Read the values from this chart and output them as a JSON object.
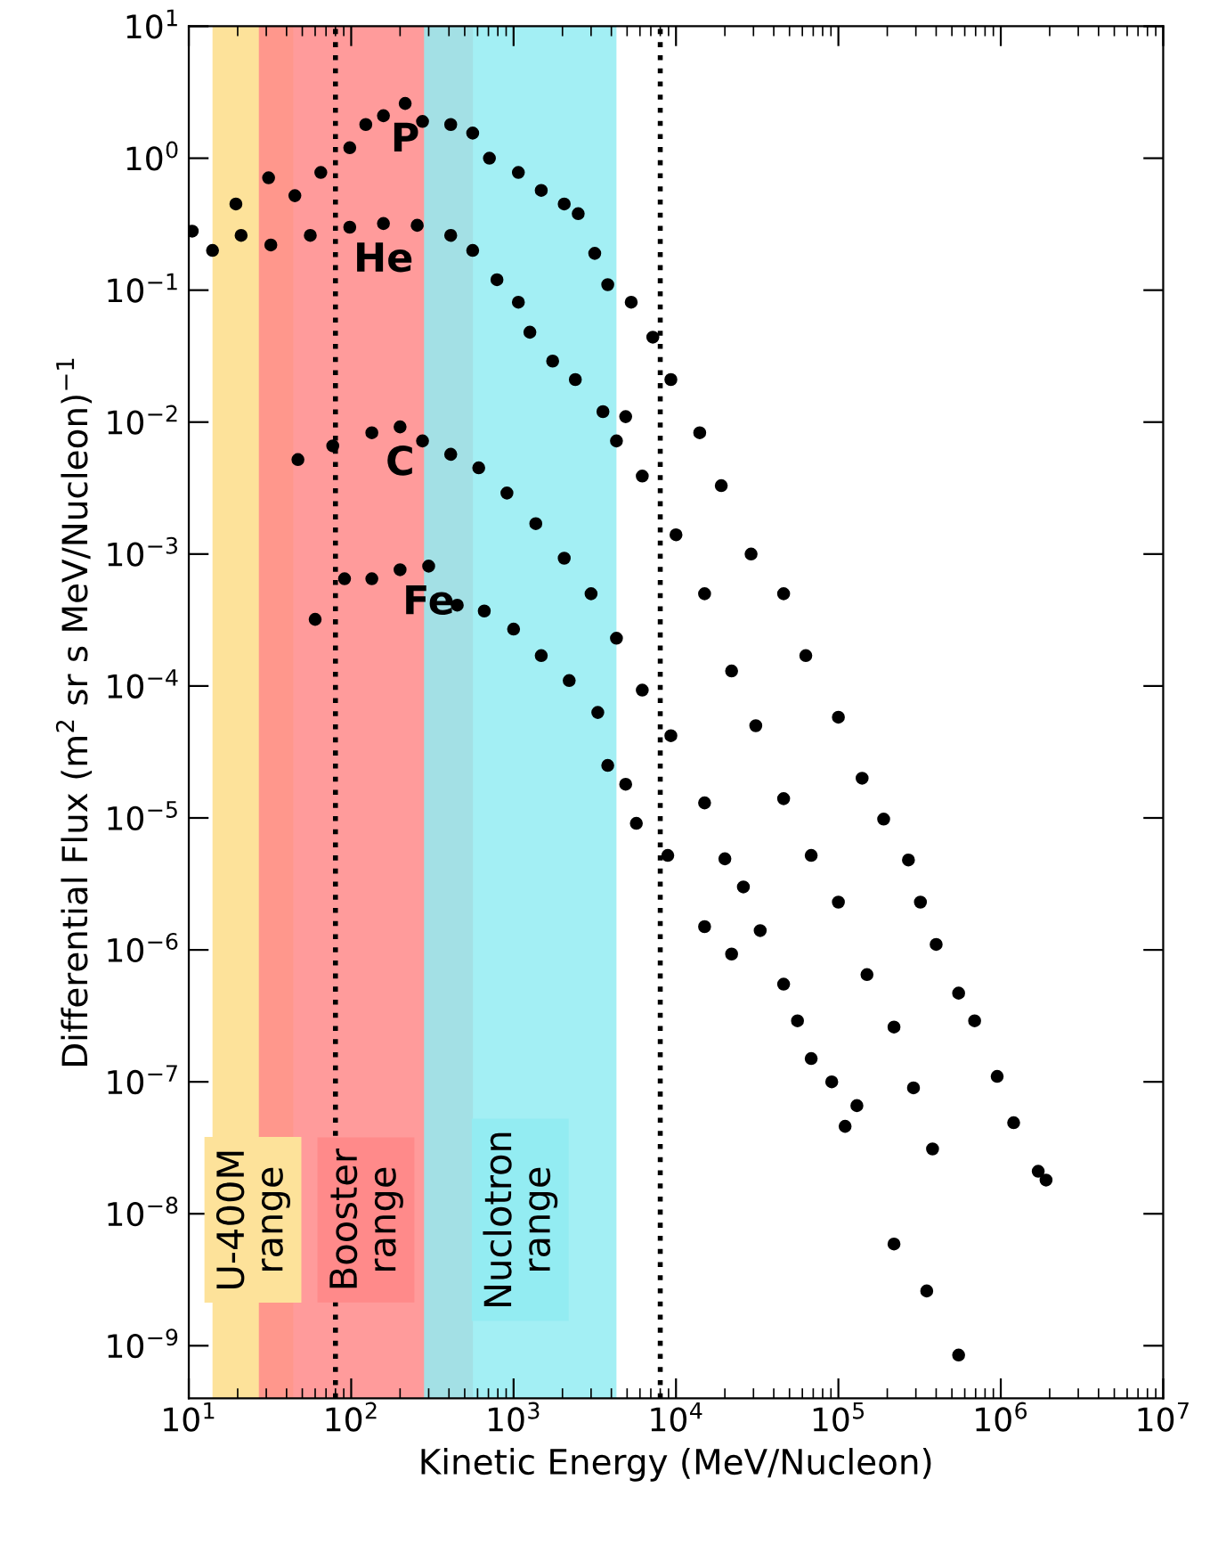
{
  "chart_data": {
    "type": "scatter",
    "xlabel": "Kinetic Energy (MeV/Nucleon)",
    "ylabel": "Differential Flux (m$^{2}$ sr s MeV/Nucleon)$^{−1}$",
    "log": "xy",
    "xlim": [
      10,
      10000000
    ],
    "ylim": [
      4e-10,
      10
    ],
    "xticks": [
      {
        "value": 10,
        "label": "10$^{1}$"
      },
      {
        "value": 100,
        "label": "10$^{2}$"
      },
      {
        "value": 1000,
        "label": "10$^{3}$"
      },
      {
        "value": 10000,
        "label": "10$^{4}$"
      },
      {
        "value": 100000,
        "label": "10$^{5}$"
      },
      {
        "value": 1000000,
        "label": "10$^{6}$"
      },
      {
        "value": 10000000,
        "label": "10$^{7}$"
      }
    ],
    "yticks": [
      {
        "value": 10,
        "label": "10$^{1}$"
      },
      {
        "value": 1,
        "label": "10$^{0}$"
      },
      {
        "value": 0.1,
        "label": "10$^{−1}$"
      },
      {
        "value": 0.01,
        "label": "10$^{−2}$"
      },
      {
        "value": 0.001,
        "label": "10$^{−3}$"
      },
      {
        "value": 0.0001,
        "label": "10$^{−4}$"
      },
      {
        "value": 1e-05,
        "label": "10$^{−5}$"
      },
      {
        "value": 1e-06,
        "label": "10$^{−6}$"
      },
      {
        "value": 1e-07,
        "label": "10$^{−7}$"
      },
      {
        "value": 1e-08,
        "label": "10$^{−8}$"
      },
      {
        "value": 1e-09,
        "label": "10$^{−9}$"
      }
    ],
    "grid": false,
    "legend": false,
    "marker": "circle",
    "series": [
      {
        "name": "P",
        "color": "#000000",
        "x": [
          19.5,
          31,
          45,
          65,
          98,
          123,
          158,
          215,
          275,
          410,
          560,
          710,
          1070,
          1480,
          2050,
          2500,
          3160,
          3800,
          5300,
          7200,
          9300,
          14000,
          19000,
          29000,
          46000,
          63000,
          100000,
          140000,
          190000,
          270000,
          320000,
          400000,
          550000,
          690000,
          950000,
          1200000,
          1700000,
          1900000
        ],
        "values": [
          0.45,
          0.71,
          0.52,
          0.78,
          1.2,
          1.8,
          2.1,
          2.6,
          1.9,
          1.8,
          1.55,
          1.0,
          0.78,
          0.57,
          0.45,
          0.38,
          0.19,
          0.11,
          0.081,
          0.044,
          0.021,
          0.0083,
          0.0033,
          0.001,
          0.0005,
          0.00017,
          5.8e-05,
          2e-05,
          9.8e-06,
          4.8e-06,
          2.3e-06,
          1.1e-06,
          4.7e-07,
          2.9e-07,
          1.1e-07,
          4.9e-08,
          2.1e-08,
          1.8e-08
        ]
      },
      {
        "name": "He",
        "color": "#000000",
        "x": [
          10.5,
          14,
          21,
          32,
          56,
          98,
          158,
          255,
          410,
          560,
          790,
          1070,
          1260,
          1740,
          2400,
          3550,
          4300,
          4900,
          6200,
          10000,
          15000,
          22000,
          31000,
          46000,
          68000,
          100000,
          150000,
          220000,
          290000,
          380000
        ],
        "values": [
          0.28,
          0.2,
          0.26,
          0.22,
          0.26,
          0.3,
          0.32,
          0.31,
          0.26,
          0.2,
          0.12,
          0.081,
          0.048,
          0.029,
          0.021,
          0.012,
          0.0072,
          0.011,
          0.0039,
          0.0014,
          0.0005,
          0.00013,
          5e-05,
          1.4e-05,
          5.2e-06,
          2.3e-06,
          6.5e-07,
          2.6e-07,
          9e-08,
          3.1e-08
        ]
      },
      {
        "name": "C",
        "color": "#000000",
        "x": [
          47,
          77,
          134,
          200,
          275,
          410,
          610,
          910,
          1370,
          2050,
          3000,
          4300,
          6200,
          9300,
          15000,
          20000,
          26000,
          33000,
          46000,
          56000,
          68000,
          91000,
          130000
        ],
        "values": [
          0.0052,
          0.0066,
          0.0083,
          0.0092,
          0.0072,
          0.0057,
          0.0045,
          0.0029,
          0.0017,
          0.00093,
          0.0005,
          0.00023,
          9.3e-05,
          4.2e-05,
          1.3e-05,
          4.9e-06,
          3e-06,
          1.4e-06,
          5.5e-07,
          2.9e-07,
          1.5e-07,
          1e-07,
          6.6e-08
        ]
      },
      {
        "name": "Fe",
        "color": "#000000",
        "x": [
          60,
          91,
          134,
          200,
          300,
          450,
          660,
          1000,
          1480,
          2200,
          3300,
          3800,
          4900,
          5700,
          8900,
          15000,
          22000,
          110000,
          220000,
          350000,
          550000
        ],
        "values": [
          0.00032,
          0.00065,
          0.00065,
          0.00076,
          0.00081,
          0.00041,
          0.00037,
          0.00027,
          0.00017,
          0.00011,
          6.3e-05,
          2.5e-05,
          1.8e-05,
          9.1e-06,
          5.2e-06,
          1.5e-06,
          9.3e-07,
          4.6e-08,
          5.9e-09,
          2.6e-09,
          8.5e-10
        ]
      }
    ],
    "bands": [
      {
        "axis": "x",
        "from": 14,
        "to": 44,
        "label": "U-400M\nrange",
        "color": "#fde29a"
      },
      {
        "axis": "x",
        "from": 27,
        "to": 562,
        "label": "Booster\nrange",
        "color": "#ff8a8a"
      },
      {
        "axis": "x",
        "from": 281,
        "to": 4300,
        "label": "Nuclotron\nrange",
        "color": "#93ecf2"
      }
    ],
    "ref_lines": [
      {
        "axis": "x",
        "value": 80,
        "line_style": "dotted",
        "color": "#000000"
      },
      {
        "axis": "x",
        "value": 8000,
        "line_style": "dotted",
        "color": "#000000"
      }
    ]
  }
}
